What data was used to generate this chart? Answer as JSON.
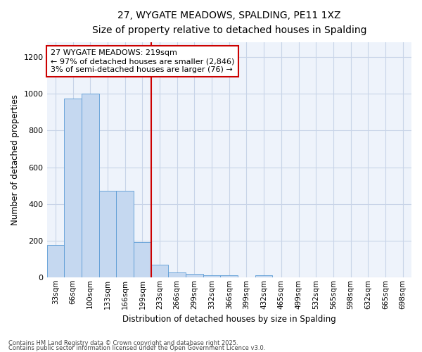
{
  "title_line1": "27, WYGATE MEADOWS, SPALDING, PE11 1XZ",
  "title_line2": "Size of property relative to detached houses in Spalding",
  "xlabel": "Distribution of detached houses by size in Spalding",
  "ylabel": "Number of detached properties",
  "bar_labels": [
    "33sqm",
    "66sqm",
    "100sqm",
    "133sqm",
    "166sqm",
    "199sqm",
    "233sqm",
    "266sqm",
    "299sqm",
    "332sqm",
    "366sqm",
    "399sqm",
    "432sqm",
    "465sqm",
    "499sqm",
    "532sqm",
    "565sqm",
    "598sqm",
    "632sqm",
    "665sqm",
    "698sqm"
  ],
  "bar_values": [
    175,
    975,
    1000,
    470,
    470,
    190,
    70,
    25,
    20,
    10,
    10,
    0,
    10,
    0,
    0,
    0,
    0,
    0,
    0,
    0,
    0
  ],
  "bar_color": "#c5d8f0",
  "bar_edge_color": "#5b9bd5",
  "grid_color": "#c8d4e8",
  "plot_bg_color": "#eef3fb",
  "fig_bg_color": "#ffffff",
  "annotation_text": "27 WYGATE MEADOWS: 219sqm\n← 97% of detached houses are smaller (2,846)\n3% of semi-detached houses are larger (76) →",
  "annotation_box_facecolor": "#ffffff",
  "annotation_box_edgecolor": "#cc0000",
  "red_line_x": 5.5,
  "ylim": [
    0,
    1280
  ],
  "yticks": [
    0,
    200,
    400,
    600,
    800,
    1000,
    1200
  ],
  "footer_line1": "Contains HM Land Registry data © Crown copyright and database right 2025.",
  "footer_line2": "Contains public sector information licensed under the Open Government Licence v3.0."
}
